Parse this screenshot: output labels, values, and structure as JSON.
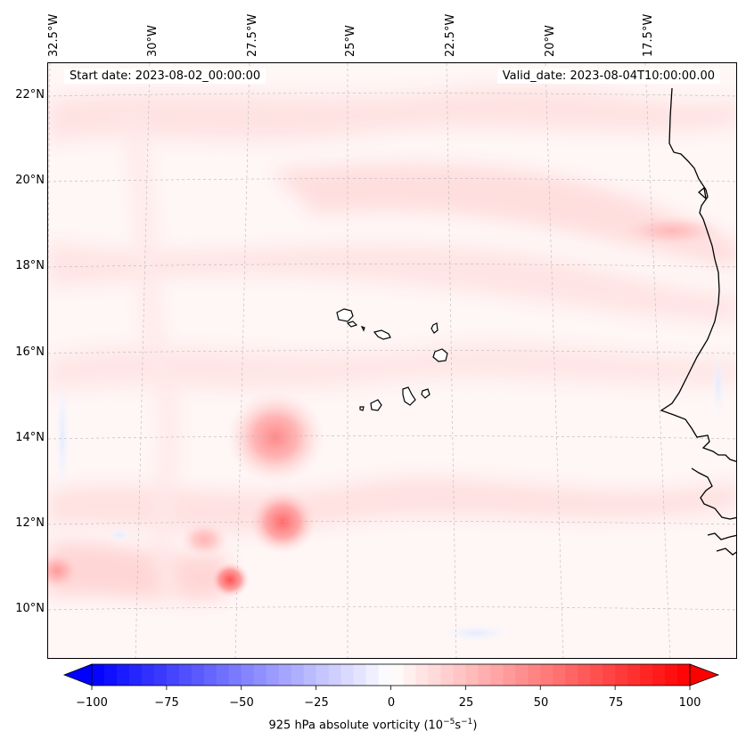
{
  "map": {
    "start_date": "Start date: 2023-08-02_00:00:00",
    "valid_date": "Valid_date: 2023-08-04T10:00:00.00",
    "lon_labels": [
      "32.5°W",
      "30°W",
      "27.5°W",
      "25°W",
      "22.5°W",
      "20°W",
      "17.5°W"
    ],
    "lat_labels": [
      "22°N",
      "20°N",
      "18°N",
      "16°N",
      "14°N",
      "12°N",
      "10°N"
    ],
    "colors": {
      "coast": "#000000",
      "grid": "#b0b0b0"
    }
  },
  "colorbar": {
    "ticks": [
      "−100",
      "−75",
      "−50",
      "−25",
      "0",
      "25",
      "50",
      "75",
      "100"
    ],
    "label": "925 hPa absolute vorticity (10",
    "label_exp1": "−5",
    "label_mid": "s",
    "label_exp2": "−1",
    "label_end": ")",
    "min_color": "#0000ff",
    "max_color": "#ff0000"
  },
  "chart_data": {
    "type": "heatmap",
    "title": "",
    "variable": "925 hPa absolute vorticity",
    "units": "10^-5 s^-1",
    "vmin": -100,
    "vmax": 100,
    "colormap": "bwr",
    "lon_range": [
      -33,
      -16
    ],
    "lat_range": [
      9,
      22.8
    ],
    "features": [
      {
        "name": "vorticity maximum",
        "lon": -27.3,
        "lat": 13.9,
        "value": 30
      },
      {
        "name": "vorticity maximum",
        "lon": -26.5,
        "lat": 12.0,
        "value": 28
      },
      {
        "name": "vorticity maximum",
        "lon": -28.8,
        "lat": 10.8,
        "value": 45
      }
    ]
  }
}
